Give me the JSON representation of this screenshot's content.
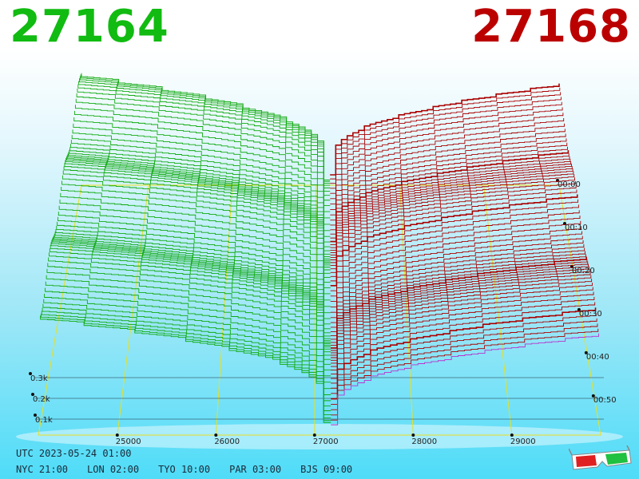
{
  "header": {
    "bid_price": "27164",
    "ask_price": "27168",
    "bid_color": "#11bb11",
    "ask_color": "#bb0000"
  },
  "footer": {
    "utc": "UTC 2023-05-24 01:00",
    "zones": [
      "NYC 21:00",
      "LON 02:00",
      "TYO 10:00",
      "PAR 03:00",
      "BJS 09:00"
    ]
  },
  "icons": {
    "glasses": "3d-glasses-icon"
  },
  "chart_data": {
    "type": "area",
    "view": "3d-order-book-depth",
    "x_ticks": [
      "25000",
      "26000",
      "27000",
      "28000",
      "29000"
    ],
    "depth_ticks": [
      "0.1k",
      "0.2k",
      "0.3k"
    ],
    "time_ticks": [
      "00:00",
      "00:10",
      "00:20",
      "00:30",
      "00:40",
      "00:50"
    ],
    "mid_price": 27166,
    "x_range": [
      24200,
      29900
    ],
    "series": [
      {
        "side": "bid",
        "color": "#11aa11"
      },
      {
        "side": "ask",
        "color": "#aa0000"
      }
    ]
  }
}
